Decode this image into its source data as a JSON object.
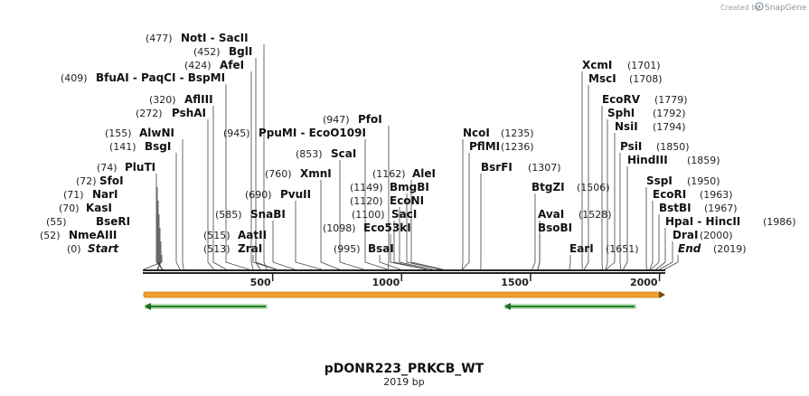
{
  "credit": {
    "text": "Created by",
    "brand": "SnapGene",
    "logo_icon": "snapgene-logo-icon"
  },
  "plasmid": {
    "name": "pDONR223_PRKCB_WT",
    "length_label": "2019 bp",
    "length": 2019
  },
  "axis": {
    "ticks": [
      500,
      1000,
      1500,
      2000
    ]
  },
  "sites": [
    {
      "name": "Start",
      "pos": "(0)",
      "at": 0,
      "italic": true
    },
    {
      "name": "NmeAIII",
      "pos": "(52)",
      "at": 52
    },
    {
      "name": "BseRI",
      "pos": "(55)",
      "at": 55
    },
    {
      "name": "KasI",
      "pos": "(70)",
      "at": 70
    },
    {
      "name": "NarI",
      "pos": "(71)",
      "at": 71
    },
    {
      "name": "SfoI",
      "pos": "(72)",
      "at": 72
    },
    {
      "name": "PluTI",
      "pos": "(74)",
      "at": 74
    },
    {
      "name": "BsgI",
      "pos": "(141)",
      "at": 141
    },
    {
      "name": "AlwNI",
      "pos": "(155)",
      "at": 155
    },
    {
      "name": "PshAI",
      "pos": "(272)",
      "at": 272
    },
    {
      "name": "AflIII",
      "pos": "(320)",
      "at": 320
    },
    {
      "name": "BfuAI  - PaqCI  - BspMI",
      "pos": "(409)",
      "at": 409
    },
    {
      "name": "AfeI",
      "pos": "(424)",
      "at": 424
    },
    {
      "name": "BglI",
      "pos": "(452)",
      "at": 452
    },
    {
      "name": "NotI  - SacII",
      "pos": "(477)",
      "at": 477
    },
    {
      "name": "ZraI",
      "pos": "(513)",
      "at": 513
    },
    {
      "name": "AatII",
      "pos": "(515)",
      "at": 515
    },
    {
      "name": "SnaBI",
      "pos": "(585)",
      "at": 585
    },
    {
      "name": "PvuII",
      "pos": "(690)",
      "at": 690
    },
    {
      "name": "XmnI",
      "pos": "(760)",
      "at": 760
    },
    {
      "name": "PpuMI  - EcoO109I",
      "pos": "(945)",
      "at": 945
    },
    {
      "name": "ScaI",
      "pos": "(853)",
      "at": 853
    },
    {
      "name": "PfoI",
      "pos": "(947)",
      "at": 947
    },
    {
      "name": "BsaI",
      "pos": "(995)",
      "at": 995
    },
    {
      "name": "Eco53kI",
      "pos": "(1098)",
      "at": 1098
    },
    {
      "name": "SacI",
      "pos": "(1100)",
      "at": 1100
    },
    {
      "name": "EcoNI",
      "pos": "(1120)",
      "at": 1120
    },
    {
      "name": "BmgBI",
      "pos": "(1149)",
      "at": 1149
    },
    {
      "name": "AleI",
      "pos": "(1162)",
      "at": 1162
    },
    {
      "name": "NcoI",
      "pos": "(1235)",
      "at": 1235
    },
    {
      "name": "PflMI",
      "pos": "(1236)",
      "at": 1236
    },
    {
      "name": "BsrFI",
      "pos": "(1307)",
      "at": 1307
    },
    {
      "name": "BtgZI",
      "pos": "(1506)",
      "at": 1506
    },
    {
      "name": "AvaI",
      "pos": "(1528)",
      "at": 1528
    },
    {
      "name": "BsoBI",
      "pos": "",
      "at": 1528
    },
    {
      "name": "EarI",
      "pos": "(1651)",
      "at": 1651
    },
    {
      "name": "XcmI",
      "pos": "(1701)",
      "at": 1701
    },
    {
      "name": "MscI",
      "pos": "(1708)",
      "at": 1708
    },
    {
      "name": "EcoRV",
      "pos": "(1779)",
      "at": 1779
    },
    {
      "name": "SphI",
      "pos": "(1792)",
      "at": 1792
    },
    {
      "name": "NsiI",
      "pos": "(1794)",
      "at": 1794
    },
    {
      "name": "PsiI",
      "pos": "(1850)",
      "at": 1850
    },
    {
      "name": "HindIII",
      "pos": "(1859)",
      "at": 1859
    },
    {
      "name": "SspI",
      "pos": "(1950)",
      "at": 1950
    },
    {
      "name": "EcoRI",
      "pos": "(1963)",
      "at": 1963
    },
    {
      "name": "BstBI",
      "pos": "(1967)",
      "at": 1967
    },
    {
      "name": "HpaI  - HincII",
      "pos": "(1986)",
      "at": 1986
    },
    {
      "name": "DraI",
      "pos": "(2000)",
      "at": 2000
    },
    {
      "name": "End",
      "pos": "(2019)",
      "at": 2019,
      "italic": true
    }
  ],
  "features": [
    {
      "kind": "orange-bar",
      "start": 0,
      "end": 2019,
      "direction": "forward",
      "color": "#f0a030"
    },
    {
      "kind": "green-arrow",
      "start": 0,
      "end": 480,
      "direction": "reverse",
      "color": "#2f9a2f"
    },
    {
      "kind": "green-arrow",
      "start": 1400,
      "end": 1900,
      "direction": "reverse",
      "color": "#2f9a2f"
    }
  ]
}
